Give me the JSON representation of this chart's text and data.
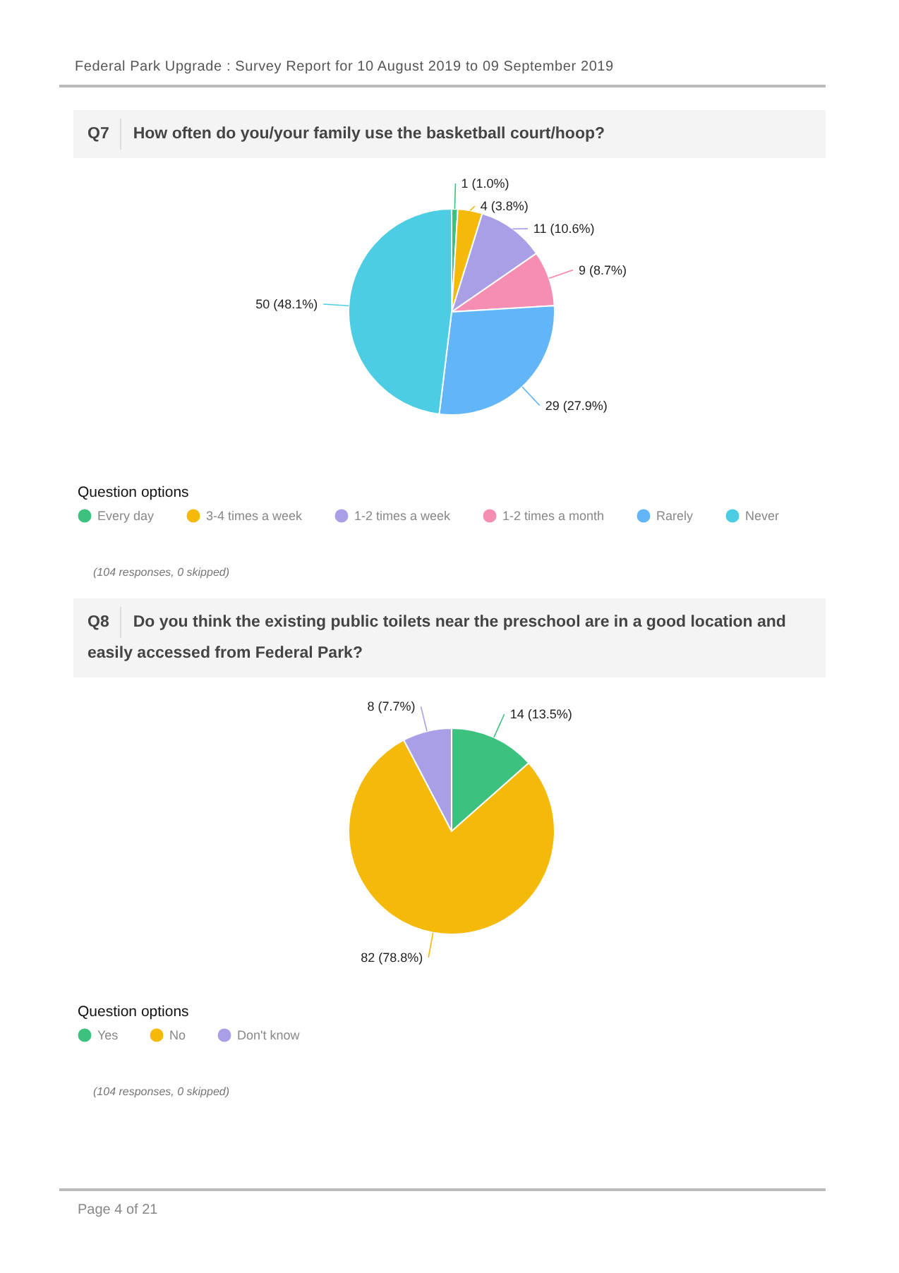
{
  "chart_data": [
    {
      "type": "pie",
      "title": "Q7",
      "subtitle": "How often do you/your family use the basketball court/hoop?",
      "categories": [
        "Every day",
        "3-4 times a week",
        "1-2 times a week",
        "1-2 times a month",
        "Rarely",
        "Never"
      ],
      "values": [
        1,
        4,
        11,
        9,
        29,
        50
      ],
      "colors": [
        "#3cc17f",
        "#f5b90a",
        "#a99fe6",
        "#f68eb4",
        "#62b5f6",
        "#4ccde3"
      ],
      "value_labels": [
        "1 (1.0%)",
        "4 (3.8%)",
        "11 (10.6%)",
        "9 (8.7%)",
        "29 (27.9%)",
        "50 (48.1%)"
      ],
      "legend": "bottom",
      "legend_title": "Question options",
      "annotations": [
        "Federal Park Upgrade : Survey Report for 10 August 2019 to 09 September 2019",
        "(104 responses, 0 skipped)"
      ]
    },
    {
      "type": "pie",
      "title": "Q8",
      "subtitle": "Do you think the existing public toilets near the preschool are in a good location and easily accessed from Federal Park?",
      "categories": [
        "Yes",
        "No",
        "Don't know"
      ],
      "values": [
        14,
        82,
        8
      ],
      "colors": [
        "#3cc17f",
        "#f5b90a",
        "#a99fe6"
      ],
      "value_labels": [
        "14 (13.5%)",
        "82 (78.8%)",
        "8 (7.7%)"
      ],
      "legend": "bottom",
      "legend_title": "Question options",
      "annotations": [
        "(104 responses, 0 skipped)",
        "Page 4 of 21"
      ]
    }
  ]
}
